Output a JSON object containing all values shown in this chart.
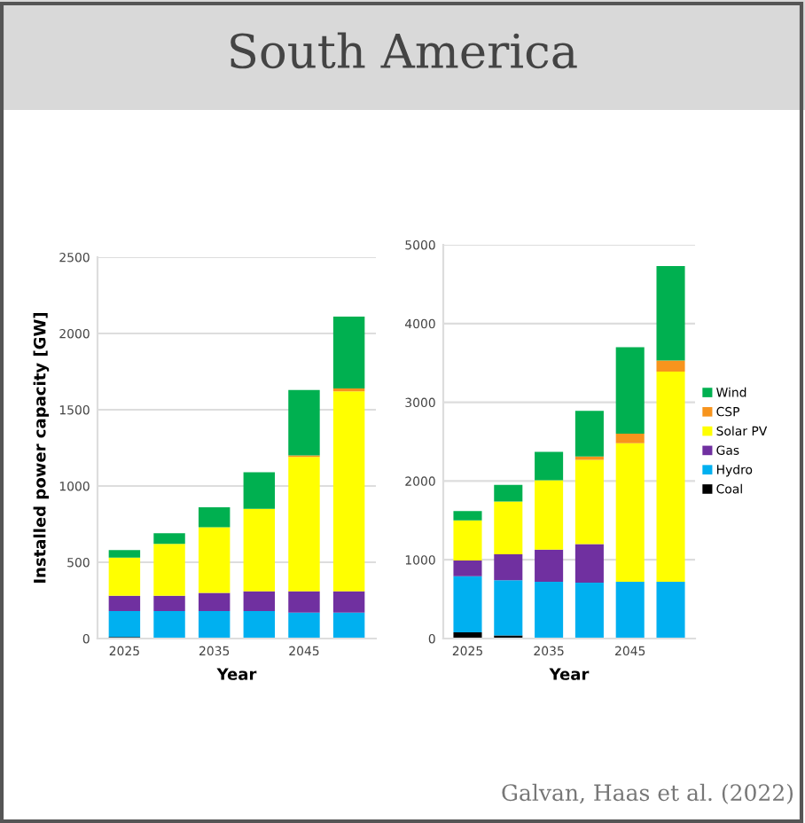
{
  "chart_data": [
    {
      "type": "bar",
      "title": "South America",
      "stacked": true,
      "ylabel": "Installed power capacity [GW]",
      "xlabel": "Year",
      "categories": [
        "2025",
        null,
        "2035",
        null,
        "2045",
        null
      ],
      "ylim": [
        0,
        2500
      ],
      "yticks": [
        0,
        500,
        1000,
        1500,
        2000,
        2500
      ],
      "grid": "y",
      "series": [
        {
          "color": "#000000",
          "values": [
            10,
            0,
            0,
            0,
            0,
            0
          ]
        },
        {
          "color": "#00b0f0",
          "values": [
            170,
            180,
            180,
            180,
            170,
            170
          ]
        },
        {
          "color": "#7030a0",
          "values": [
            100,
            100,
            120,
            130,
            140,
            140
          ]
        },
        {
          "color": "#ffff00",
          "values": [
            250,
            340,
            430,
            540,
            880,
            1310
          ]
        },
        {
          "color": "#f7941d",
          "values": [
            0,
            0,
            0,
            0,
            10,
            20
          ]
        },
        {
          "color": "#00b050",
          "values": [
            50,
            70,
            130,
            240,
            430,
            470
          ]
        }
      ]
    },
    {
      "type": "bar",
      "stacked": true,
      "xlabel": "Year",
      "categories": [
        "2025",
        null,
        "2035",
        null,
        "2045",
        null
      ],
      "ylim": [
        0,
        5000
      ],
      "yticks": [
        0,
        1000,
        2000,
        3000,
        4000,
        5000
      ],
      "grid": "y",
      "legend": "right",
      "annotations": [
        "Galvan, Haas et al. (2022)"
      ],
      "series": [
        {
          "name": "Coal",
          "color": "#000000",
          "values": [
            80,
            40,
            null,
            null,
            0,
            0
          ]
        },
        {
          "name": "Hydro",
          "color": "#00b0f0",
          "values": [
            710,
            700,
            720,
            710,
            720,
            720
          ]
        },
        {
          "name": "Gas",
          "color": "#7030a0",
          "values": [
            200,
            330,
            410,
            490,
            0,
            0
          ]
        },
        {
          "name": "Solar PV",
          "color": "#ffff00",
          "values": [
            510,
            670,
            880,
            1070,
            1760,
            2670
          ]
        },
        {
          "name": "CSP",
          "color": "#f7941d",
          "values": [
            0,
            0,
            0,
            40,
            120,
            140
          ]
        },
        {
          "name": "Wind",
          "color": "#00b050",
          "values": [
            120,
            210,
            360,
            580,
            1100,
            1200
          ]
        }
      ]
    }
  ]
}
